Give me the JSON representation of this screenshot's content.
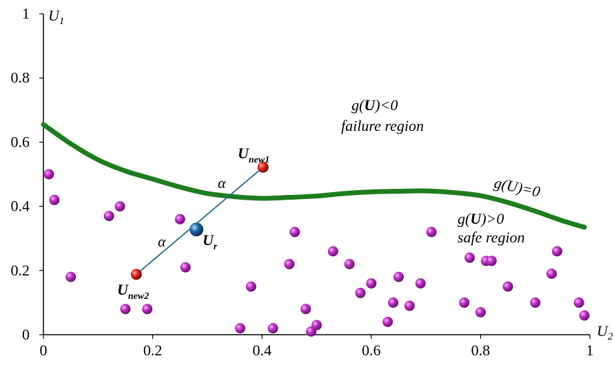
{
  "chart_data": {
    "type": "scatter",
    "xlim": [
      0,
      1
    ],
    "ylim": [
      0,
      1
    ],
    "x_ticks": [
      0,
      0.2,
      0.4,
      0.6,
      0.8,
      1
    ],
    "y_ticks": [
      0,
      0.2,
      0.4,
      0.6,
      0.8,
      1
    ],
    "x_tick_labels": [
      "0",
      "0.2",
      "0.4",
      "0.6",
      "0.8",
      "1"
    ],
    "y_tick_labels": [
      "0",
      "0.2",
      "0.4",
      "0.6",
      "0.8",
      "1"
    ],
    "xlabel_main": "U",
    "xlabel_sub": "2",
    "ylabel_main": "U",
    "ylabel_sub": "1",
    "grid": false,
    "colors": {
      "samples": "#c030c8",
      "limit_state": "#1e7d1e",
      "new_points": "#e0281e",
      "reference_point": "#1a6db0",
      "connector": "#1b6b8a"
    },
    "limit_state_curve": {
      "x": [
        0,
        0.05,
        0.1,
        0.15,
        0.2,
        0.25,
        0.3,
        0.35,
        0.4,
        0.45,
        0.5,
        0.55,
        0.6,
        0.65,
        0.7,
        0.75,
        0.8,
        0.85,
        0.9,
        0.95,
        0.99
      ],
      "y": [
        0.655,
        0.595,
        0.545,
        0.51,
        0.485,
        0.46,
        0.44,
        0.43,
        0.425,
        0.428,
        0.432,
        0.44,
        0.445,
        0.447,
        0.448,
        0.443,
        0.433,
        0.412,
        0.385,
        0.355,
        0.335
      ]
    },
    "samples": [
      [
        0.01,
        0.5
      ],
      [
        0.02,
        0.42
      ],
      [
        0.05,
        0.18
      ],
      [
        0.12,
        0.37
      ],
      [
        0.14,
        0.4
      ],
      [
        0.15,
        0.08
      ],
      [
        0.19,
        0.08
      ],
      [
        0.25,
        0.36
      ],
      [
        0.26,
        0.21
      ],
      [
        0.36,
        0.02
      ],
      [
        0.38,
        0.15
      ],
      [
        0.42,
        0.02
      ],
      [
        0.45,
        0.22
      ],
      [
        0.46,
        0.32
      ],
      [
        0.48,
        0.08
      ],
      [
        0.49,
        0.01
      ],
      [
        0.5,
        0.03
      ],
      [
        0.53,
        0.26
      ],
      [
        0.56,
        0.22
      ],
      [
        0.58,
        0.13
      ],
      [
        0.6,
        0.16
      ],
      [
        0.63,
        0.04
      ],
      [
        0.64,
        0.1
      ],
      [
        0.65,
        0.18
      ],
      [
        0.67,
        0.09
      ],
      [
        0.69,
        0.16
      ],
      [
        0.71,
        0.32
      ],
      [
        0.77,
        0.1
      ],
      [
        0.78,
        0.24
      ],
      [
        0.8,
        0.07
      ],
      [
        0.81,
        0.23
      ],
      [
        0.82,
        0.23
      ],
      [
        0.85,
        0.15
      ],
      [
        0.9,
        0.1
      ],
      [
        0.93,
        0.19
      ],
      [
        0.94,
        0.26
      ],
      [
        0.98,
        0.1
      ],
      [
        0.99,
        0.06
      ]
    ],
    "new_point_1": {
      "x": 0.402,
      "y": 0.522,
      "label": "U",
      "sub": "new1"
    },
    "new_point_2": {
      "x": 0.17,
      "y": 0.188,
      "label": "U",
      "sub": "new2"
    },
    "reference_point": {
      "x": 0.28,
      "y": 0.328,
      "label": "U",
      "sub": "r"
    },
    "annotations": {
      "failure_formula_pre": "g(",
      "failure_formula_var": "U",
      "failure_formula_post": ")<0",
      "failure_text": "failure region",
      "safe_formula_pre": "g(",
      "safe_formula_var": "U",
      "safe_formula_post": ")>0",
      "safe_text": "safe region",
      "limit_formula": "g(U)=0",
      "alpha_upper": "α",
      "alpha_lower": "α"
    }
  }
}
